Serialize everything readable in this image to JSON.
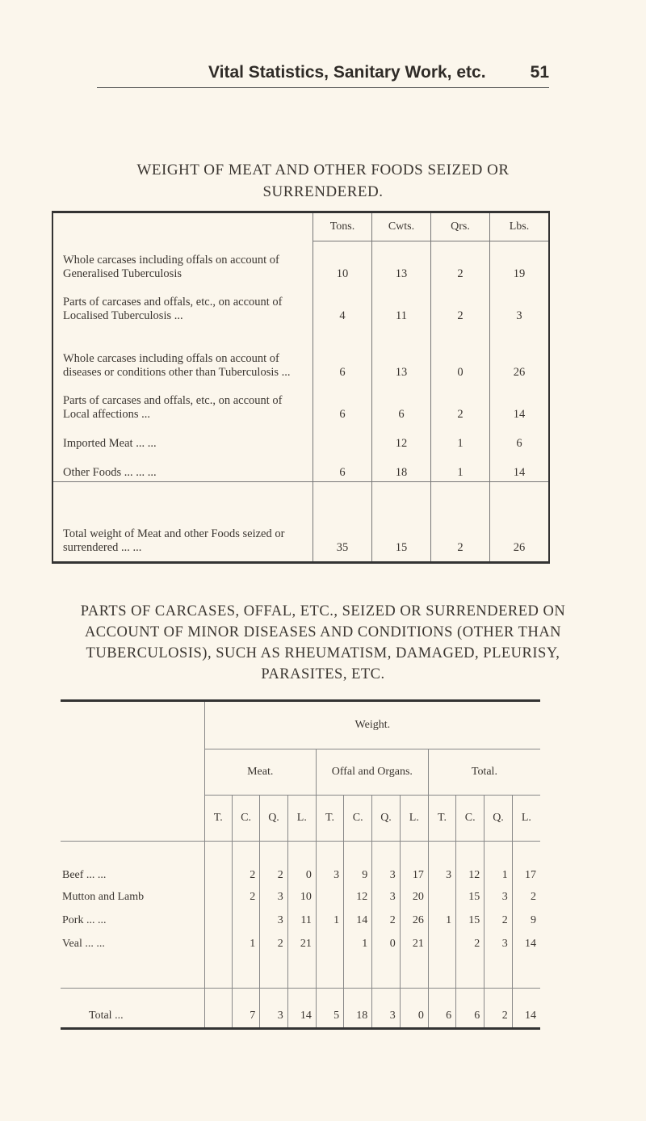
{
  "header": {
    "title": "Vital Statistics, Sanitary Work, etc.",
    "page_number": "51"
  },
  "table1": {
    "title": "WEIGHT OF MEAT AND OTHER FOODS SEIZED OR SURRENDERED.",
    "columns": [
      "Tons.",
      "Cwts.",
      "Qrs.",
      "Lbs."
    ],
    "rows": [
      {
        "label": "Whole carcases including offals on account of Generalised Tuberculosis",
        "values": [
          "10",
          "13",
          "2",
          "19"
        ]
      },
      {
        "label": "Parts of carcases and offals, etc., on account of Localised Tuberculosis ...",
        "values": [
          "4",
          "11",
          "2",
          "3"
        ]
      },
      {
        "label": "Whole carcases including offals on account of diseases or conditions other than Tuberculosis ...",
        "values": [
          "6",
          "13",
          "0",
          "26"
        ]
      },
      {
        "label": "Parts of carcases and offals, etc., on account of Local affections ...",
        "values": [
          "6",
          "6",
          "2",
          "14"
        ]
      },
      {
        "label": "Imported Meat ... ...",
        "values": [
          "",
          "12",
          "1",
          "6"
        ]
      },
      {
        "label": "Other Foods ... ... ...",
        "values": [
          "6",
          "18",
          "1",
          "14"
        ]
      }
    ],
    "total": {
      "label": "Total weight of Meat and other Foods seized or surrendered ... ...",
      "values": [
        "35",
        "15",
        "2",
        "26"
      ]
    }
  },
  "table2": {
    "title": "PARTS OF CARCASES, OFFAL, ETC., SEIZED OR SURRENDERED ON ACCOUNT OF MINOR DISEASES AND CONDITIONS (OTHER THAN TUBERCULOSIS), SUCH AS RHEUMATISM, DAMAGED, PLEURISY, PARASITES, ETC.",
    "weight_header": "Weight.",
    "groups": [
      "Meat.",
      "Offal and Organs.",
      "Total."
    ],
    "units": [
      "T.",
      "C.",
      "Q.",
      "L.",
      "T.",
      "C.",
      "Q.",
      "L.",
      "T.",
      "C.",
      "Q.",
      "L."
    ],
    "rows": [
      {
        "label": "Beef ... ...",
        "values": [
          "",
          "2",
          "2",
          "0",
          "3",
          "9",
          "3",
          "17",
          "3",
          "12",
          "1",
          "17"
        ]
      },
      {
        "label": "Mutton and Lamb",
        "values": [
          "",
          "2",
          "3",
          "10",
          "",
          "12",
          "3",
          "20",
          "",
          "15",
          "3",
          "2"
        ]
      },
      {
        "label": "Pork ... ...",
        "values": [
          "",
          "",
          "3",
          "11",
          "1",
          "14",
          "2",
          "26",
          "1",
          "15",
          "2",
          "9"
        ]
      },
      {
        "label": "Veal ... ...",
        "values": [
          "",
          "1",
          "2",
          "21",
          "",
          "1",
          "0",
          "21",
          "",
          "2",
          "3",
          "14"
        ]
      }
    ],
    "total": {
      "label": "Total ...",
      "values": [
        "",
        "7",
        "3",
        "14",
        "5",
        "18",
        "3",
        "0",
        "6",
        "6",
        "2",
        "14"
      ]
    }
  }
}
